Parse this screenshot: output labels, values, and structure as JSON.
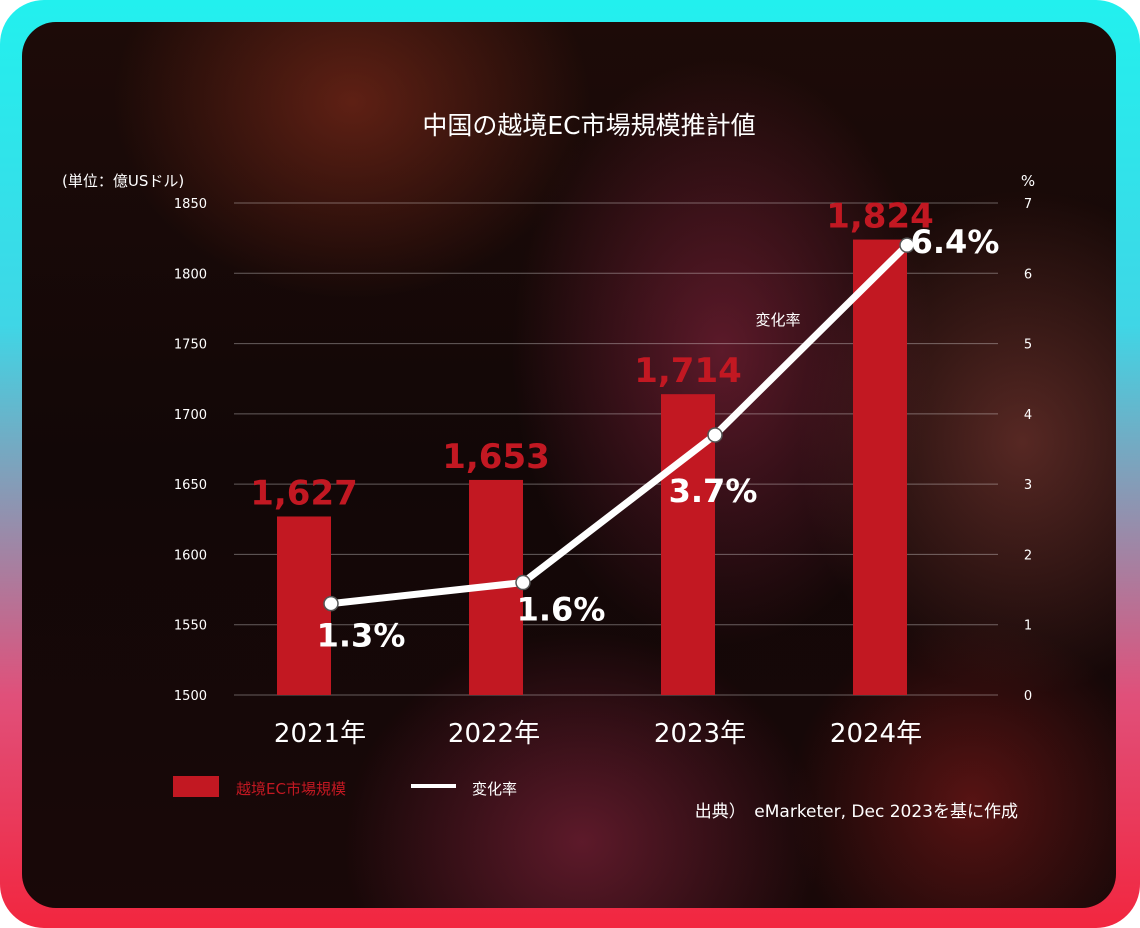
{
  "chart_data": {
    "type": "bar",
    "title": "中国の越境EC市場規模推計値",
    "categories": [
      "2021年",
      "2022年",
      "2023年",
      "2024年"
    ],
    "series": [
      {
        "name": "越境EC市場規模",
        "type": "bar",
        "axis": "left",
        "values": [
          1627,
          1653,
          1714,
          1824
        ],
        "labels": [
          "1,627",
          "1,653",
          "1,714",
          "1,824"
        ],
        "color": "#c21822"
      },
      {
        "name": "変化率",
        "type": "line",
        "axis": "right",
        "values": [
          1.3,
          1.6,
          3.7,
          6.4
        ],
        "labels": [
          "1.3%",
          "1.6%",
          "3.7%",
          "6.4%"
        ],
        "color": "#ffffff"
      }
    ],
    "ylabel": "(単位：億USドル)",
    "y2label": "%",
    "ylim": [
      1500,
      1850
    ],
    "yticks": [
      1500,
      1550,
      1600,
      1650,
      1700,
      1750,
      1800,
      1850
    ],
    "y2lim": [
      0,
      7
    ],
    "y2ticks": [
      0,
      1,
      2,
      3,
      4,
      5,
      6,
      7
    ],
    "grid": true,
    "legend": "bottom-left",
    "line_annotation": "変化率",
    "source": "出典）　eMarketer, Dec 2023を基に作成"
  }
}
